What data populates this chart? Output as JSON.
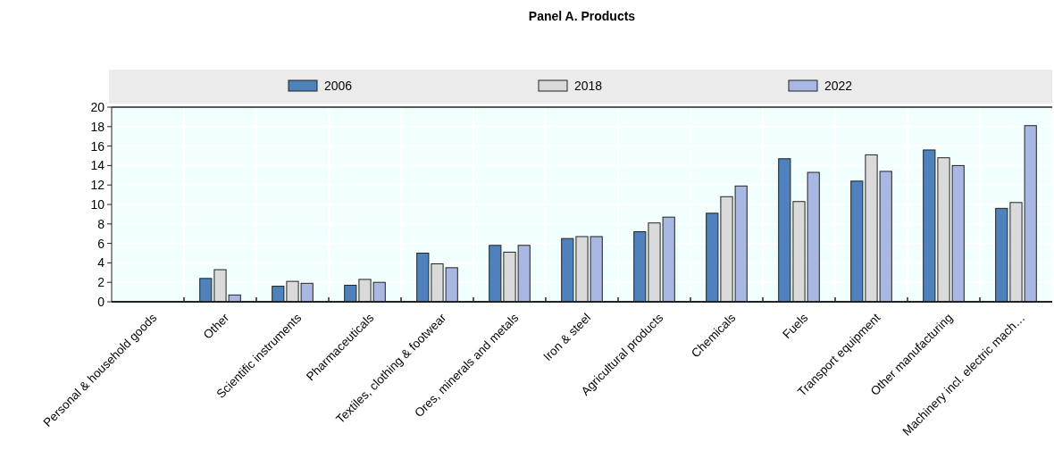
{
  "chart_data": {
    "type": "bar",
    "title": "Panel A. Products",
    "categories": [
      "Personal & household goods",
      "Other",
      "Scientific instruments",
      "Pharmaceuticals",
      "Textiles, clothing & footwear",
      "Ores, minerals and metals",
      "Iron & steel",
      "Agricultural products",
      "Chemicals",
      "Fuels",
      "Transport equipment",
      "Other manufacturing",
      "Machinery incl. electric mach…"
    ],
    "series": [
      {
        "name": "2006",
        "color": "#4f81bd",
        "values": [
          0,
          2.4,
          1.6,
          1.7,
          5.0,
          5.8,
          6.5,
          7.2,
          9.1,
          14.7,
          12.4,
          15.6,
          9.6
        ]
      },
      {
        "name": "2018",
        "color": "#dadada",
        "values": [
          0,
          3.3,
          2.1,
          2.3,
          3.9,
          5.1,
          6.7,
          8.1,
          10.8,
          10.3,
          15.1,
          14.8,
          10.2
        ]
      },
      {
        "name": "2022",
        "color": "#a8b8e2",
        "values": [
          0,
          0.7,
          1.9,
          2.0,
          3.5,
          5.8,
          6.7,
          8.7,
          11.9,
          13.3,
          13.4,
          14.0,
          18.1
        ]
      }
    ],
    "ylim": [
      0,
      20
    ],
    "yticks": [
      0,
      2,
      4,
      6,
      8,
      10,
      12,
      14,
      16,
      18,
      20
    ],
    "grid": true,
    "legend": "top"
  }
}
